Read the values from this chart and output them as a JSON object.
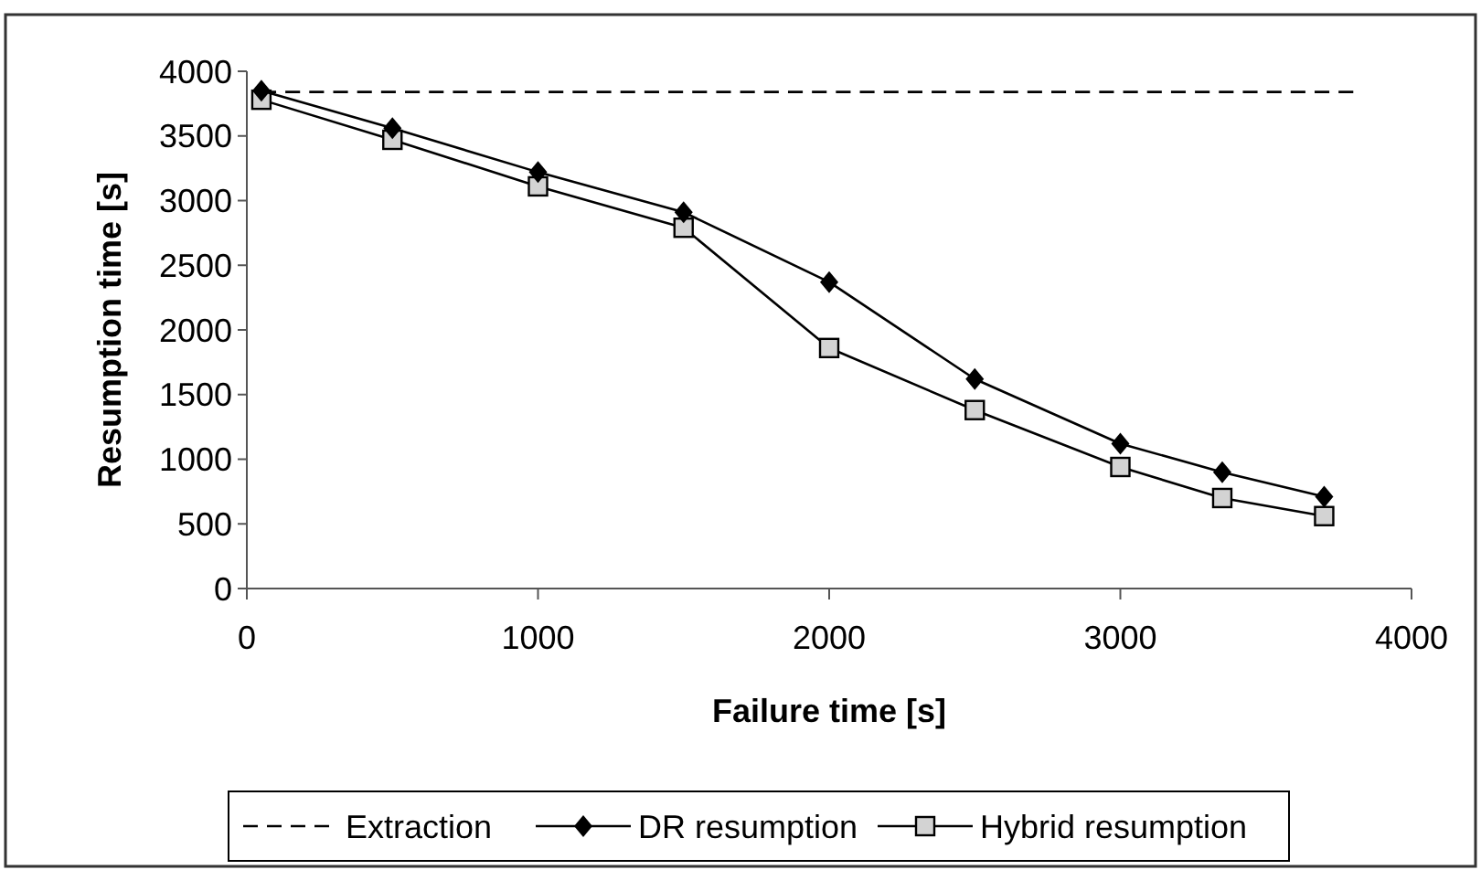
{
  "chart_data": {
    "type": "line",
    "xlabel": "Failure time [s]",
    "ylabel": "Resumption time [s]",
    "xlim": [
      0,
      4000
    ],
    "xticks": [
      0,
      1000,
      2000,
      3000,
      4000
    ],
    "ylim": [
      0,
      4000
    ],
    "yticks": [
      0,
      500,
      1000,
      1500,
      2000,
      2500,
      3000,
      3500,
      4000
    ],
    "grid": false,
    "legend": "bottom",
    "series": [
      {
        "name": "Extraction",
        "color": "#000000",
        "x": [
          50,
          3800
        ],
        "values": [
          3840,
          3840
        ],
        "line_style": "dashed",
        "marker": "none"
      },
      {
        "name": "DR resumption",
        "color": "#000000",
        "x": [
          50,
          500,
          1000,
          1500,
          2000,
          2500,
          3000,
          3350,
          3700
        ],
        "values": [
          3850,
          3560,
          3220,
          2910,
          2370,
          1620,
          1120,
          900,
          710
        ],
        "line_style": "solid",
        "marker": "diamond"
      },
      {
        "name": "Hybrid resumption",
        "color": "#d3d3d3",
        "x": [
          50,
          500,
          1000,
          1500,
          2000,
          2500,
          3000,
          3350,
          3700
        ],
        "values": [
          3780,
          3470,
          3110,
          2790,
          1860,
          1380,
          940,
          700,
          560
        ],
        "line_style": "solid",
        "marker": "square"
      }
    ]
  }
}
